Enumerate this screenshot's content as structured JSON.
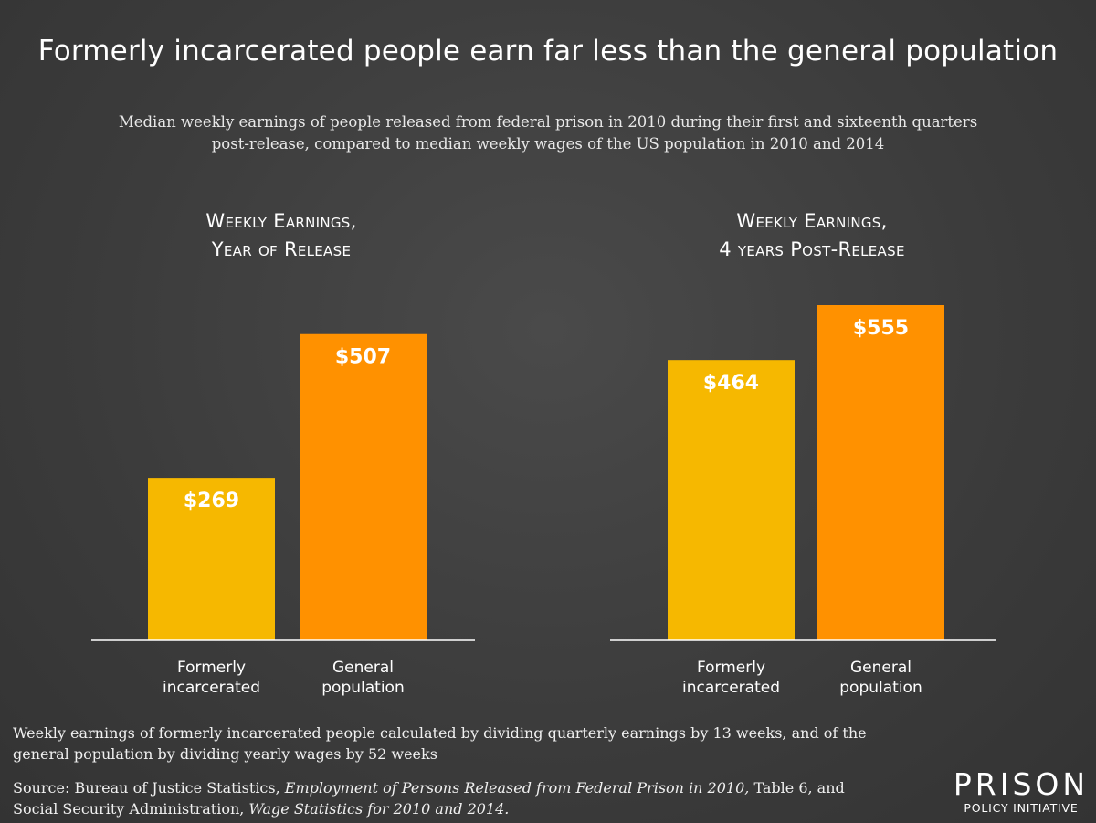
{
  "title": "Formerly incarcerated people earn far less than the general population",
  "subtitle": {
    "line1": "Median weekly earnings of people released from federal prison in 2010 during their first and sixteenth quarters",
    "line2": "post-release, compared to median weekly wages of the US population in 2010 and 2014"
  },
  "colors": {
    "background": "#3d3d3d",
    "formerly_incarcerated": "#F6B800",
    "general_population": "#FF9100",
    "text": "#FFFFFF"
  },
  "chart_data": [
    {
      "type": "bar",
      "title_lines": [
        "Weekly Earnings,",
        "Year of Release"
      ],
      "categories": [
        {
          "line1": "Formerly",
          "line2": "incarcerated"
        },
        {
          "line1": "General",
          "line2": "population"
        }
      ],
      "values": [
        269,
        507
      ],
      "labels": [
        "$269",
        "$507"
      ],
      "ylim": [
        0,
        555
      ]
    },
    {
      "type": "bar",
      "title_lines": [
        "Weekly Earnings,",
        "4 years Post-Release"
      ],
      "categories": [
        {
          "line1": "Formerly",
          "line2": "incarcerated"
        },
        {
          "line1": "General",
          "line2": "population"
        }
      ],
      "values": [
        464,
        555
      ],
      "labels": [
        "$464",
        "$555"
      ],
      "ylim": [
        0,
        555
      ]
    }
  ],
  "note": {
    "line1": "Weekly earnings of formerly incarcerated people calculated by dividing quarterly earnings by 13 weeks, and of the",
    "line2": "general population by dividing yearly wages by 52 weeks"
  },
  "source": {
    "prefix": "Source: Bureau of Justice Statistics, ",
    "report": "Employment of Persons Released from Federal Prison in 2010,",
    "middle": " Table 6, and",
    "line2_prefix": "Social Security Administration, ",
    "report2": "Wage Statistics for 2010 and 2014."
  },
  "logo": {
    "top": "PRISON",
    "bottom": "POLICY INITIATIVE"
  }
}
